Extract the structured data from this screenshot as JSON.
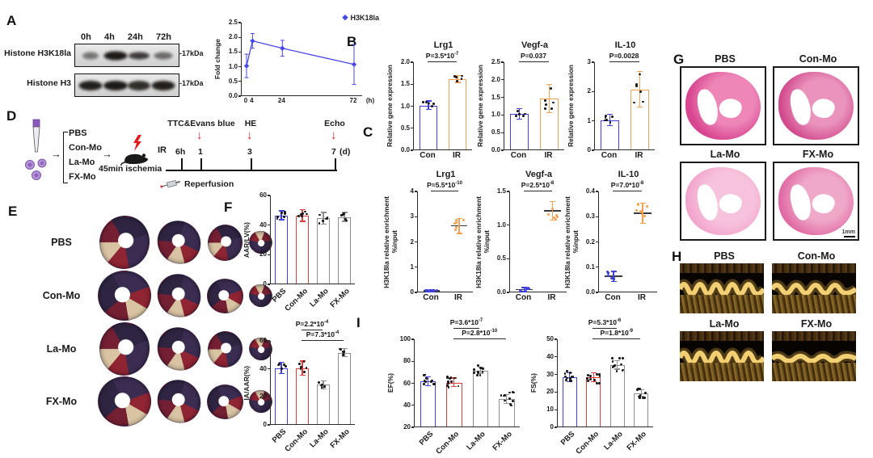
{
  "icons": {
    "diamond": "◆",
    "right_arrow": "→",
    "down_arrow": "↓"
  },
  "colors": {
    "blue": "#4040dd",
    "orange": "#f5a04e",
    "red": "#e23b3b",
    "gray": "#8f8f8f",
    "axis": "#2a2a2a",
    "red_accent": "#e51f1f"
  },
  "panels": {
    "A": {
      "letter": "A",
      "blot": {
        "lanes": [
          "0h",
          "4h",
          "24h",
          "72h"
        ],
        "rows": [
          {
            "label": "Histone H3K18la",
            "marker": "-17kDa"
          },
          {
            "label": "Histone H3",
            "marker": "-17kDa"
          }
        ]
      }
    },
    "B": {
      "letter": "B"
    },
    "C": {
      "letter": "C"
    },
    "D": {
      "letter": "D",
      "groups": [
        "PBS",
        "Con-Mo",
        "La-Mo",
        "FX-Mo"
      ],
      "ir": "IR",
      "ischemia": "45min ischemia",
      "reperfusion": "Reperfusion",
      "ticks": [
        "6h",
        "1",
        "3",
        "7"
      ],
      "unit": "(d)",
      "events": [
        "TTC&Evans blue",
        "HE",
        "Echo"
      ]
    },
    "E": {
      "letter": "E",
      "rows": [
        "PBS",
        "Con-Mo",
        "La-Mo",
        "FX-Mo"
      ]
    },
    "F": {
      "letter": "F"
    },
    "G": {
      "letter": "G",
      "cells": [
        "PBS",
        "Con-Mo",
        "La-Mo",
        "FX-Mo"
      ],
      "scalebar": "1mm"
    },
    "H": {
      "letter": "H",
      "cells": [
        "PBS",
        "Con-Mo",
        "La-Mo",
        "FX-Mo"
      ]
    },
    "I": {
      "letter": "I"
    }
  },
  "chart_data": [
    {
      "id": "a-foldchange",
      "type": "line",
      "legend": "H3K18la",
      "color": "#4848e8",
      "ylabel": "Fold change",
      "ylim": [
        0,
        2.5
      ],
      "yticks": [
        "0.0",
        "0.5",
        "1.0",
        "1.5",
        "2.0",
        "2.5"
      ],
      "x": [
        0,
        4,
        24,
        72
      ],
      "xticks": [
        "0",
        "4",
        "24",
        "72"
      ],
      "xunit": "(h)",
      "values": [
        1.0,
        1.85,
        1.6,
        1.05
      ],
      "errors": [
        0.4,
        0.25,
        0.27,
        0.68
      ]
    },
    {
      "id": "b-lrg1",
      "type": "bar",
      "title": "Lrg1",
      "ylabel": "Relative gene expression",
      "categories": [
        "Con",
        "IR"
      ],
      "values": [
        1.0,
        1.6
      ],
      "errors": [
        0.1,
        0.08
      ],
      "ylim": [
        0,
        2
      ],
      "yticks": [
        "0.0",
        "0.5",
        "1.0",
        "1.5",
        "2.0"
      ],
      "colors": [
        "#4040dd",
        "#f5a04e"
      ],
      "dots": 5,
      "pvalues": [
        {
          "pre": "P=3.5*10",
          "sup": "-7",
          "from": 0,
          "to": 1
        }
      ]
    },
    {
      "id": "b-vegfa",
      "type": "bar",
      "title": "Vegf-a",
      "ylabel": "Relative gene expression",
      "categories": [
        "Con",
        "IR"
      ],
      "values": [
        1.0,
        1.45
      ],
      "errors": [
        0.15,
        0.4
      ],
      "ylim": [
        0,
        2.5
      ],
      "yticks": [
        "0.0",
        "0.5",
        "1.0",
        "1.5",
        "2.0",
        "2.5"
      ],
      "colors": [
        "#4040dd",
        "#f5a04e"
      ],
      "dots": 6,
      "pvalues": [
        {
          "pre": "P=0.037",
          "from": 0,
          "to": 1
        }
      ]
    },
    {
      "id": "b-il10",
      "type": "bar",
      "title": "IL-10",
      "ylabel": "Relative gene expression",
      "categories": [
        "Con",
        "IR"
      ],
      "values": [
        1.0,
        2.05
      ],
      "errors": [
        0.2,
        0.6
      ],
      "ylim": [
        0,
        3
      ],
      "yticks": [
        "0",
        "1",
        "2",
        "3"
      ],
      "colors": [
        "#4040dd",
        "#f5a04e"
      ],
      "dots": 6,
      "pvalues": [
        {
          "pre": "P=0.0028",
          "from": 0,
          "to": 1
        }
      ]
    },
    {
      "id": "c-lrg1",
      "type": "scatter",
      "title": "Lrg1",
      "ylabel_lines": [
        "H3K18la relative enrichment",
        "%input"
      ],
      "categories": [
        "Con",
        "IR"
      ],
      "values": [
        0.03,
        2.6
      ],
      "errors": [
        0.03,
        0.3
      ],
      "ylim": [
        0,
        4
      ],
      "yticks": [
        "0",
        "1",
        "2",
        "3",
        "4"
      ],
      "colors": [
        "#4040dd",
        "#f5a04e"
      ],
      "dots": 6,
      "pvalues": [
        {
          "pre": "P=5.5*10",
          "sup": "-10",
          "from": 0,
          "to": 1
        }
      ]
    },
    {
      "id": "c-vegfa",
      "type": "scatter",
      "title": "Vegf-a",
      "ylabel_lines": [
        "H3K18la relative enrichment",
        "%input"
      ],
      "categories": [
        "Con",
        "IR"
      ],
      "values": [
        0.03,
        1.2
      ],
      "errors": [
        0.03,
        0.14
      ],
      "ylim": [
        0,
        1.5
      ],
      "yticks": [
        "0.0",
        "0.5",
        "1.0",
        "1.5"
      ],
      "colors": [
        "#4040dd",
        "#f5a04e"
      ],
      "dots": 6,
      "pvalues": [
        {
          "pre": "P=2.5*10",
          "sup": "-8",
          "from": 0,
          "to": 1
        }
      ]
    },
    {
      "id": "c-il10",
      "type": "scatter",
      "title": "IL-10",
      "ylabel_lines": [
        "H3K18la relative enrichment",
        "%input"
      ],
      "categories": [
        "Con",
        "IR"
      ],
      "values": [
        0.06,
        0.31
      ],
      "errors": [
        0.02,
        0.04
      ],
      "ylim": [
        0,
        0.4
      ],
      "yticks": [
        "0.0",
        "0.1",
        "0.2",
        "0.3",
        "0.4"
      ],
      "colors": [
        "#4040dd",
        "#f5a04e"
      ],
      "dots": 6,
      "pvalues": [
        {
          "pre": "P=7.0*10",
          "sup": "-8",
          "from": 0,
          "to": 1
        }
      ]
    },
    {
      "id": "f-aarlv",
      "type": "bar",
      "ylabel": "AAR/LV(%)",
      "categories": [
        "PBS",
        "Con-Mo",
        "La-Mo",
        "FX-Mo"
      ],
      "values": [
        46,
        46,
        44,
        45
      ],
      "errors": [
        3,
        4,
        4,
        3
      ],
      "ylim": [
        0,
        60
      ],
      "yticks": [
        "0",
        "20",
        "40",
        "60"
      ],
      "colors": [
        "#4040dd",
        "#e23b3b",
        "#8f8f8f",
        "#8f8f8f"
      ],
      "dots": 6,
      "rotate_x": true
    },
    {
      "id": "f-iaaar",
      "type": "bar",
      "ylabel": "IA/AAR(%)",
      "categories": [
        "PBS",
        "Con-Mo",
        "La-Mo",
        "FX-Mo"
      ],
      "values": [
        40,
        40,
        28,
        51
      ],
      "errors": [
        4,
        5,
        3,
        3
      ],
      "ylim": [
        0,
        60
      ],
      "yticks": [
        "0",
        "20",
        "40",
        "60"
      ],
      "colors": [
        "#4040dd",
        "#e23b3b",
        "#8f8f8f",
        "#8f8f8f"
      ],
      "dots": 6,
      "rotate_x": true,
      "pvalues": [
        {
          "pre": "P=2.2*10",
          "sup": "-4",
          "from": 1,
          "to": 2
        },
        {
          "pre": "P=7.3*10",
          "sup": "-4",
          "from": 1,
          "to": 3
        }
      ]
    },
    {
      "id": "i-ef",
      "type": "bar",
      "ylabel": "EF(%)",
      "categories": [
        "PBS",
        "Con-Mo",
        "La-Mo",
        "FX-Mo"
      ],
      "values": [
        61,
        60,
        71,
        45
      ],
      "errors": [
        4,
        4,
        3,
        4
      ],
      "ylim": [
        20,
        100
      ],
      "yticks": [
        "20",
        "40",
        "60",
        "80",
        "100"
      ],
      "colors": [
        "#4040dd",
        "#e23b3b",
        "#8f8f8f",
        "#8f8f8f"
      ],
      "dots": 11,
      "rotate_x": true,
      "pvalues": [
        {
          "pre": "P=3.6*10",
          "sup": "-7",
          "from": 1,
          "to": 2
        },
        {
          "pre": "P=2.8*10",
          "sup": "-10",
          "from": 1,
          "to": 3
        }
      ]
    },
    {
      "id": "i-fs",
      "type": "bar",
      "ylabel": "FS(%)",
      "categories": [
        "PBS",
        "Con-Mo",
        "La-Mo",
        "FX-Mo"
      ],
      "values": [
        28,
        28,
        35,
        19
      ],
      "errors": [
        2.5,
        2.5,
        2.5,
        2
      ],
      "ylim": [
        0,
        50
      ],
      "yticks": [
        "0",
        "10",
        "20",
        "30",
        "40",
        "50"
      ],
      "colors": [
        "#4040dd",
        "#e23b3b",
        "#8f8f8f",
        "#8f8f8f"
      ],
      "dots": 11,
      "rotate_x": true,
      "pvalues": [
        {
          "pre": "P=5.3*10",
          "sup": "-6",
          "from": 1,
          "to": 2
        },
        {
          "pre": "P=1.8*10",
          "sup": "-9",
          "from": 1,
          "to": 3
        }
      ]
    }
  ]
}
